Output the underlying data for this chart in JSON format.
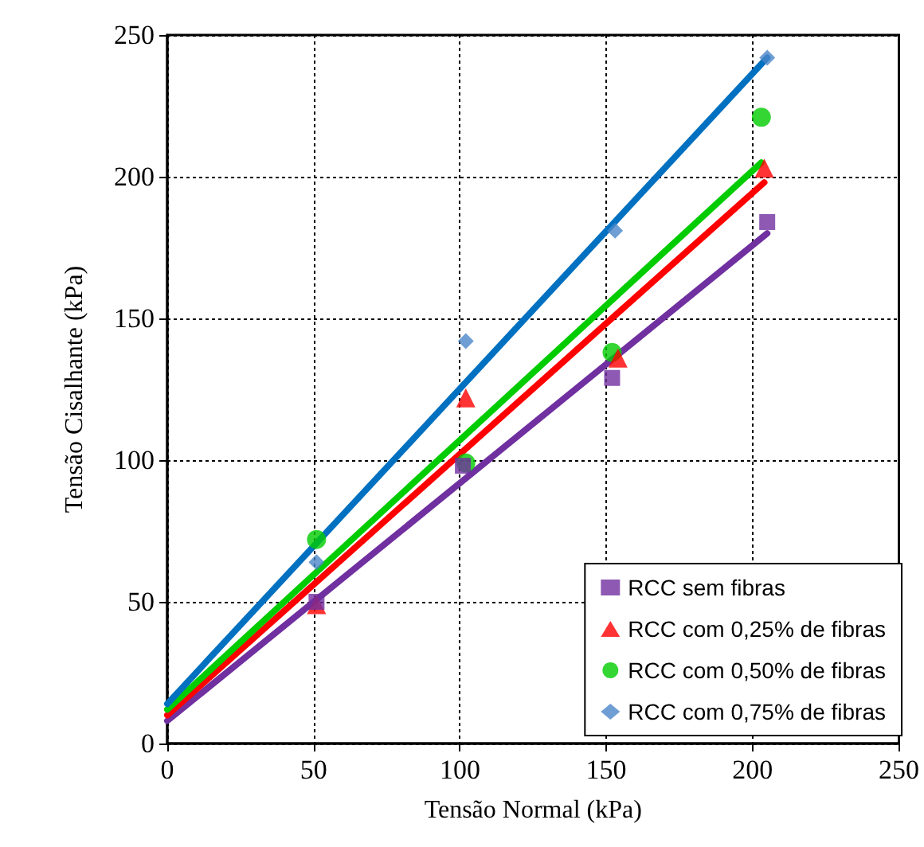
{
  "chart_data": {
    "type": "scatter",
    "xlabel": "Tensão Normal (kPa)",
    "ylabel": "Tensão Cisalhante (kPa)",
    "xlim": [
      0,
      250
    ],
    "xticks": [
      0,
      50,
      100,
      150,
      200,
      250
    ],
    "ylim": [
      0,
      250
    ],
    "yticks": [
      0,
      50,
      100,
      150,
      200,
      250
    ],
    "grid": true,
    "legend": "bottom right",
    "series": [
      {
        "name": "RCC sem fibras",
        "color": "#7030a0",
        "marker": "square",
        "x": [
          51,
          101,
          152,
          205
        ],
        "values": [
          50,
          98,
          129,
          184
        ]
      },
      {
        "name": "RCC com 0,25% de fibras",
        "color": "#ff0000",
        "marker": "triangle",
        "x": [
          51,
          102,
          154,
          204
        ],
        "values": [
          49,
          122,
          136,
          203
        ]
      },
      {
        "name": "RCC com 0,50% de fibras",
        "color": "#00cc00",
        "marker": "circle",
        "x": [
          51,
          102,
          152,
          203
        ],
        "values": [
          72,
          99,
          138,
          221
        ]
      },
      {
        "name": "RCC com 0,75% de fibras",
        "color": "#4a86c8",
        "marker": "diamond",
        "x": [
          51,
          102,
          153,
          205
        ],
        "values": [
          64,
          142,
          181,
          242
        ]
      },
      {
        "type": "line",
        "color": "#7030a0",
        "marker": "none",
        "x": [
          0,
          205
        ],
        "values": [
          8,
          180
        ]
      },
      {
        "type": "line",
        "color": "#ff0000",
        "marker": "none",
        "x": [
          0,
          204
        ],
        "values": [
          10,
          198
        ]
      },
      {
        "type": "line",
        "color": "#00cc00",
        "marker": "none",
        "x": [
          0,
          203
        ],
        "values": [
          12,
          205
        ]
      },
      {
        "type": "line",
        "color": "#0070c0",
        "marker": "none",
        "x": [
          0,
          205
        ],
        "values": [
          14,
          242
        ]
      }
    ]
  }
}
